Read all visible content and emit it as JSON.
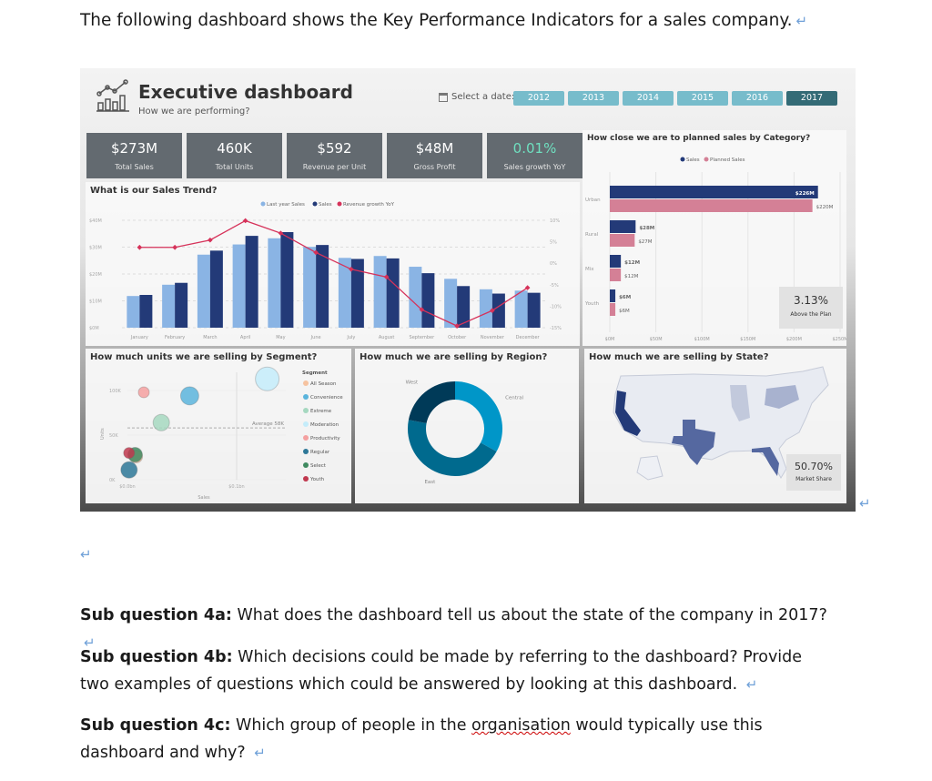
{
  "document": {
    "intro": "The following dashboard shows the Key Performance Indicators for a sales company.",
    "para_mark": "↵",
    "questions": [
      {
        "label": "Sub question 4a:",
        "text": " What does the dashboard tell us about the state of the company in 2017?"
      },
      {
        "label": "Sub question 4b:",
        "text": " Which decisions could be made by referring to the dashboard? Provide two examples of questions which could be answered by looking at this dashboard. "
      },
      {
        "label": "Sub question 4c:",
        "text_before": " Which group of people in the ",
        "text_marked": "organisation",
        "text_after": " would typically use this dashboard and why? "
      }
    ]
  },
  "dashboard": {
    "title": "Executive dashboard",
    "subtitle": "How we are performing?",
    "date_label": "Select a date:",
    "years": [
      "2012",
      "2013",
      "2014",
      "2015",
      "2016",
      "2017"
    ],
    "selected_year": "2017",
    "kpis": [
      {
        "value": "$273M",
        "label": "Total Sales"
      },
      {
        "value": "460K",
        "label": "Total Units"
      },
      {
        "value": "$592",
        "label": "Revenue per Unit"
      },
      {
        "value": "$48M",
        "label": "Gross Profit"
      },
      {
        "value": "0.01%",
        "label": "Sales growth YoY"
      }
    ],
    "colors": {
      "kpi_bg": "#636a70",
      "growth_text": "#6fe0c0",
      "year_btn": "#77bccb",
      "year_selected": "#346b76",
      "sales": "#233a78",
      "last_year": "#8ab4e4",
      "growth_line": "#d6325a",
      "planned": "#d48096"
    }
  },
  "chart_data": [
    {
      "type": "bar",
      "title": "What is our Sales Trend?",
      "categories": [
        "January",
        "February",
        "March",
        "April",
        "May",
        "June",
        "July",
        "August",
        "September",
        "October",
        "November",
        "December"
      ],
      "series": [
        {
          "name": "Last year Sales",
          "values": [
            11.8,
            16,
            27.2,
            31,
            33.3,
            30.1,
            26,
            26.7,
            22.7,
            18.2,
            14.3,
            13.8
          ]
        },
        {
          "name": "Sales",
          "values": [
            12.2,
            16.7,
            28.7,
            34.2,
            35.6,
            30.8,
            25.6,
            25.8,
            20.3,
            15.5,
            12.7,
            13
          ]
        },
        {
          "name": "Revenue growth YoY",
          "type": "line",
          "axis": "right",
          "values": [
            3.7,
            3.7,
            5.4,
            9.9,
            7,
            2.5,
            -1.4,
            -3.2,
            -10.8,
            -14.6,
            -11,
            -5.7
          ]
        }
      ],
      "y_ticks": [
        "$0M",
        "$10M",
        "$20M",
        "$30M",
        "$40M"
      ],
      "y2_ticks": [
        "-15%",
        "-10%",
        "-5%",
        "0%",
        "5%",
        "10%"
      ],
      "ylim": [
        0,
        40
      ],
      "y2lim": [
        -15,
        10
      ],
      "legend": "top",
      "grid": true
    },
    {
      "type": "bar",
      "orientation": "horizontal",
      "title": "How close we are to planned sales by Category?",
      "categories": [
        "Urban",
        "Rural",
        "Mix",
        "Youth"
      ],
      "series": [
        {
          "name": "Sales",
          "values": [
            226,
            28,
            12,
            6
          ],
          "labels": [
            "$226M",
            "$28M",
            "$12M",
            "$6M"
          ]
        },
        {
          "name": "Planned Sales",
          "values": [
            220,
            27,
            12,
            6
          ],
          "labels": [
            "$220M",
            "$27M",
            "$12M",
            "$6M"
          ]
        }
      ],
      "x_ticks": [
        "$0M",
        "$50M",
        "$100M",
        "$150M",
        "$200M",
        "$250M"
      ],
      "xlim": [
        0,
        250
      ],
      "legend": "top",
      "card": {
        "value": "3.13%",
        "label": "Above the Plan"
      }
    },
    {
      "type": "scatter",
      "title": "How much units we are selling by Segment?",
      "xlabel": "Sales",
      "ylabel": "Units",
      "x_ticks": [
        "$0.0bn",
        "$0.1bn"
      ],
      "y_ticks": [
        "0K",
        "50K",
        "100K"
      ],
      "average_label": "Average 58K",
      "average": 58,
      "legend_title": "Segment",
      "points": [
        {
          "name": "All Season",
          "x": 0.008,
          "y": 26,
          "color": "#f6c3a0"
        },
        {
          "name": "Convenience",
          "x": 0.057,
          "y": 94,
          "color": "#5ab4dc"
        },
        {
          "name": "Extreme",
          "x": 0.031,
          "y": 64,
          "color": "#a6d8c0"
        },
        {
          "name": "Moderation",
          "x": 0.128,
          "y": 113,
          "color": "#c4ecfa"
        },
        {
          "name": "Productivity",
          "x": 0.015,
          "y": 98,
          "color": "#f4a0a0"
        },
        {
          "name": "Regular",
          "x": 0.0015,
          "y": 11,
          "color": "#2e7898"
        },
        {
          "name": "Select",
          "x": 0.007,
          "y": 28,
          "color": "#3f8a60"
        },
        {
          "name": "Youth",
          "x": 0.0015,
          "y": 30,
          "color": "#c0384e"
        }
      ]
    },
    {
      "type": "pie",
      "title": "How much we are selling by Region?",
      "slices": [
        {
          "name": "Central",
          "value": 33,
          "color": "#0096c8"
        },
        {
          "name": "East",
          "value": 45,
          "color": "#006a8e"
        },
        {
          "name": "West",
          "value": 22,
          "color": "#003a58"
        }
      ]
    },
    {
      "type": "map",
      "title": "How much we are selling by State?",
      "highlighted": [
        "California",
        "Texas",
        "Florida"
      ],
      "card": {
        "value": "50.70%",
        "label": "Market Share"
      }
    }
  ]
}
